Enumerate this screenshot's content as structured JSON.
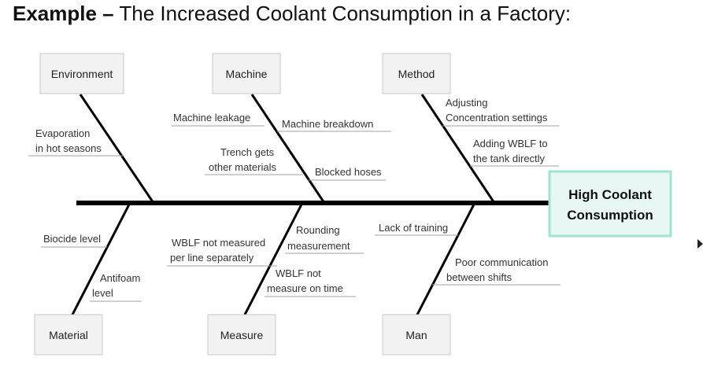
{
  "title": {
    "bold": "Example –",
    "rest": " The Increased Coolant Consumption in a Factory:"
  },
  "colors": {
    "spine": "#000000",
    "category_box_fill": "#f2f2f2",
    "category_box_border": "#c8c8c8",
    "effect_fill": "#e8f7f3",
    "effect_border": "#9fe3d2",
    "underline": "#a0a0a0"
  },
  "effect": {
    "line1": "High Coolant",
    "line2": "Consumption"
  },
  "categories": {
    "environment": "Environment",
    "machine": "Machine",
    "method": "Method",
    "material": "Material",
    "measure": "Measure",
    "man": "Man"
  },
  "causes": {
    "environment": {
      "c1a": "Evaporation",
      "c1b": "in hot seasons"
    },
    "machine": {
      "c1": "Machine leakage",
      "c2": "Machine breakdown",
      "c3a": "Trench gets",
      "c3b": "other materials",
      "c4": "Blocked hoses"
    },
    "method": {
      "c1a": "Adjusting",
      "c1b": "Concentration settings",
      "c2a": "Adding WBLF to",
      "c2b": "the tank directly"
    },
    "material": {
      "c1": "Biocide level",
      "c2a": "Antifoam",
      "c2b": "level"
    },
    "measure": {
      "c1a": "WBLF not measured",
      "c1b": "per line separately",
      "c2a": "Rounding",
      "c2b": "measurement",
      "c3a": "WBLF not",
      "c3b": "measure on time"
    },
    "man": {
      "c1": "Lack of training",
      "c2a": "Poor communication",
      "c2b": "between shifts"
    }
  }
}
